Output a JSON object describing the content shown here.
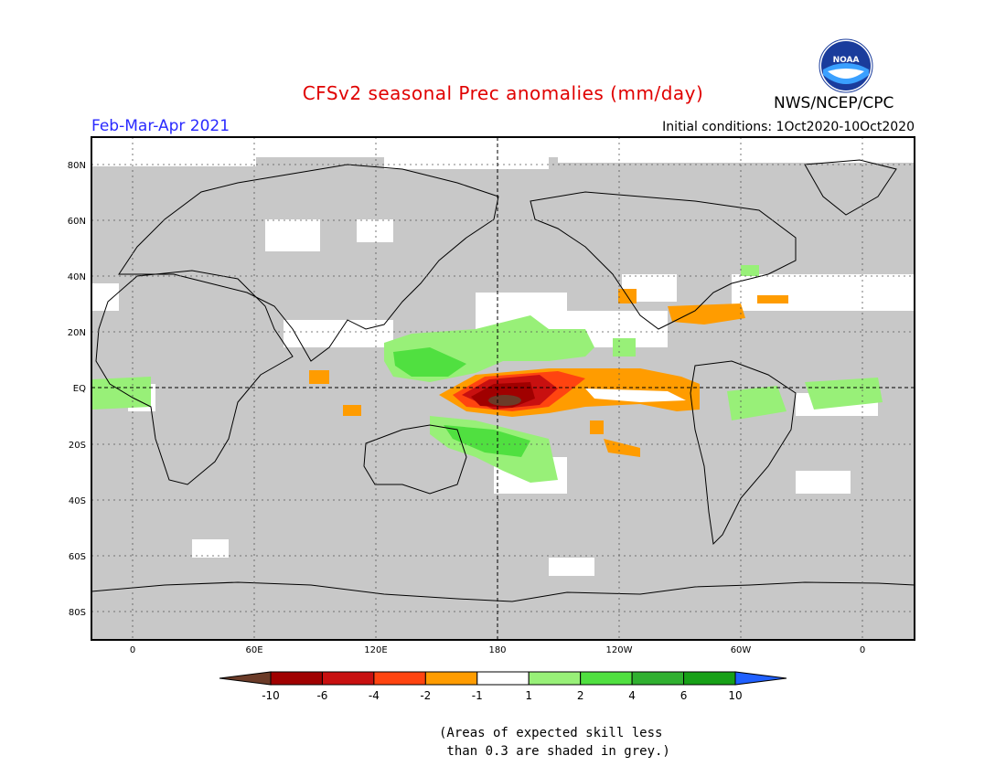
{
  "title": "CFSv2 seasonal Prec anomalies (mm/day)",
  "season": "Feb-Mar-Apr 2021",
  "initial_conditions": "Initial conditions: 1Oct2020-10Oct2020",
  "agency": "NWS/NCEP/CPC",
  "logo_text": "NOAA",
  "footnote": "(Areas of expected skill less\n than 0.3 are shaded in grey.)",
  "latitude_labels": [
    "80N",
    "60N",
    "40N",
    "20N",
    "EQ",
    "20S",
    "40S",
    "60S",
    "80S"
  ],
  "longitude_labels": [
    "0",
    "60E",
    "120E",
    "180",
    "120W",
    "60W",
    "0"
  ],
  "colorbar": {
    "labels": [
      "-10",
      "-6",
      "-4",
      "-2",
      "-1",
      "1",
      "2",
      "4",
      "6",
      "10"
    ],
    "colors": [
      "#6b3b28",
      "#a00000",
      "#c81010",
      "#ff4410",
      "#ff9c00",
      "#ffffff",
      "#98f078",
      "#50e040",
      "#30b030",
      "#17a017",
      "#2060ff"
    ]
  },
  "colors": {
    "skill_grey": "#c8c8c8",
    "title": "#e00000",
    "season": "#2a2aff"
  }
}
